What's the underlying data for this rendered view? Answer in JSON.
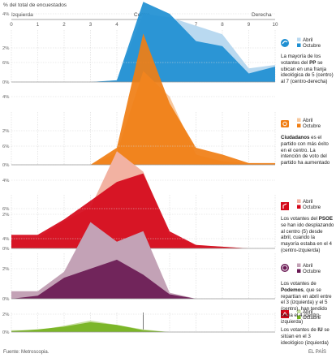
{
  "header": {
    "yunit": "% del total de encuestados",
    "left": "Izquierda",
    "center": "Centro",
    "right": "Derecha"
  },
  "footer": {
    "source": "Fuente: Metroscopia.",
    "brand": "EL PAÍS"
  },
  "chart_data": {
    "type": "area",
    "x": [
      0,
      1,
      2,
      3,
      4,
      5,
      6,
      7,
      8,
      9,
      10
    ],
    "xticks": [
      "0",
      "1",
      "2",
      "3",
      "4",
      "5",
      "6",
      "7",
      "8",
      "9",
      "10"
    ],
    "highlight_tick": "5",
    "grid": true,
    "panels": [
      {
        "party": "PP",
        "icon": "pp-logo-icon",
        "colors": {
          "abril": "#b9d9f0",
          "octubre": "#1e8fd2"
        },
        "yticks": [
          "0%",
          "2%",
          "4%",
          "6%"
        ],
        "ylim": [
          0,
          6
        ],
        "series": [
          {
            "name": "Abril",
            "values": [
              0,
              0,
              0,
              0,
              0.1,
              4.0,
              3.8,
              3.3,
              2.8,
              0.8,
              1.0
            ]
          },
          {
            "name": "Octubre",
            "values": [
              0,
              0,
              0,
              0,
              0.1,
              4.7,
              4.0,
              2.4,
              2.1,
              0.5,
              0.9
            ]
          }
        ],
        "text": [
          "La mayoría de los votantes del ",
          "PP",
          " se ubican en una franja ideológica de 5 (centro) al 7 (centro-derecha)"
        ]
      },
      {
        "party": "Ciudadanos",
        "icon": "ciudadanos-logo-icon",
        "colors": {
          "abril": "#f7c89e",
          "octubre": "#f07e14"
        },
        "yticks": [
          "0%",
          "2%",
          "4%",
          "6%"
        ],
        "ylim": [
          0,
          6
        ],
        "series": [
          {
            "name": "Abril",
            "values": [
              0,
              0,
              0,
              0,
              0.7,
              5.5,
              4.0,
              0.6,
              0.2,
              0.1,
              0
            ]
          },
          {
            "name": "Octubre",
            "values": [
              0,
              0,
              0,
              0,
              1.0,
              7.7,
              3.6,
              1.0,
              0.6,
              0.1,
              0.1
            ]
          }
        ],
        "text": [
          "",
          "Ciudadanos",
          " es el partido con más éxito en el centro. La intención de voto del partido ha aumentado"
        ]
      },
      {
        "party": "PSOE",
        "icon": "psoe-logo-icon",
        "colors": {
          "abril": "#f2b2a2",
          "octubre": "#d5081a"
        },
        "yticks": [
          "0%",
          "2%",
          "4%",
          "6%"
        ],
        "ylim": [
          0,
          6
        ],
        "series": [
          {
            "name": "Abril",
            "values": [
              0.5,
              0.6,
              1.6,
              2.4,
              5.7,
              4.5,
              0.8,
              0.2,
              0.1,
              0,
              0
            ]
          },
          {
            "name": "Octubre",
            "values": [
              0.8,
              0.8,
              1.7,
              2.8,
              3.9,
              4.4,
              1.0,
              0.2,
              0.1,
              0,
              0
            ]
          }
        ],
        "text": [
          "Los votantes del ",
          "PSOE",
          " se han ido desplazando al centro (5) desde abril, cuando la mayoría estaba en el 4 (centro-izquierda)"
        ]
      },
      {
        "party": "Podemos",
        "icon": "podemos-logo-icon",
        "colors": {
          "abril": "#c3a2b6",
          "octubre": "#6a1a54"
        },
        "yticks": [
          "0%",
          "2%",
          "4%",
          "6%"
        ],
        "ylim": [
          0,
          6
        ],
        "series": [
          {
            "name": "Abril",
            "values": [
              0.5,
              0.5,
              1.8,
              5.1,
              3.8,
              4.5,
              0.4,
              0,
              0,
              0,
              0
            ]
          },
          {
            "name": "Octubre",
            "values": [
              0,
              0.2,
              1.4,
              2.0,
              2.6,
              1.6,
              0.3,
              0,
              0,
              0,
              0
            ]
          }
        ],
        "text": [
          "Los votantes de ",
          "Podemos",
          ", que se repartían en abril entre el 3 (izquierda) y el 5 (centro), han tendido hacia el 4 (centro-izquierda)"
        ]
      },
      {
        "party": "IU",
        "icon": "iu-logo-icon",
        "colors": {
          "abril": "#c9e0a2",
          "octubre": "#75b21e"
        },
        "yticks": [
          "0%",
          "2%"
        ],
        "ylim": [
          0,
          3
        ],
        "series": [
          {
            "name": "Abril",
            "values": [
              0.2,
              0.2,
              0.7,
              1.3,
              0.8,
              0.3,
              0,
              0,
              0,
              0,
              0
            ]
          },
          {
            "name": "Octubre",
            "values": [
              0.1,
              0.3,
              0.6,
              1.1,
              0.8,
              0.2,
              0,
              0,
              0,
              0,
              0
            ]
          }
        ],
        "text": [
          "Los votantes de ",
          "IU",
          " se sitúan en el 3 ideológico (izquierda)"
        ]
      }
    ]
  }
}
